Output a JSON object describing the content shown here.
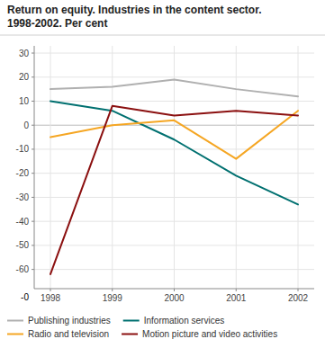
{
  "chart_data": {
    "type": "line",
    "title": "Return on equity. Industries in the content sector.\n1998-2002. Per cent",
    "categories": [
      "1998",
      "1999",
      "2000",
      "2001",
      "2002"
    ],
    "series": [
      {
        "name": "Publishing industries",
        "color": "#b0b0b0",
        "values": [
          15,
          16,
          19,
          15,
          12
        ]
      },
      {
        "name": "Information services",
        "color": "#007070",
        "values": [
          10,
          6,
          -6,
          -21,
          -33
        ]
      },
      {
        "name": "Radio and television",
        "color": "#f5a623",
        "values": [
          -5,
          0,
          2,
          -14,
          6
        ]
      },
      {
        "name": "Motion picture and video activities",
        "color": "#8b1010",
        "values": [
          -62,
          8,
          4,
          6,
          4
        ]
      }
    ],
    "ylim": [
      -68,
      33
    ],
    "yticks": [
      30,
      20,
      10,
      0,
      -10,
      -20,
      -30,
      -40,
      -50,
      -60
    ],
    "annotations": [
      "-0"
    ],
    "grid": true,
    "legend": "bottom"
  }
}
